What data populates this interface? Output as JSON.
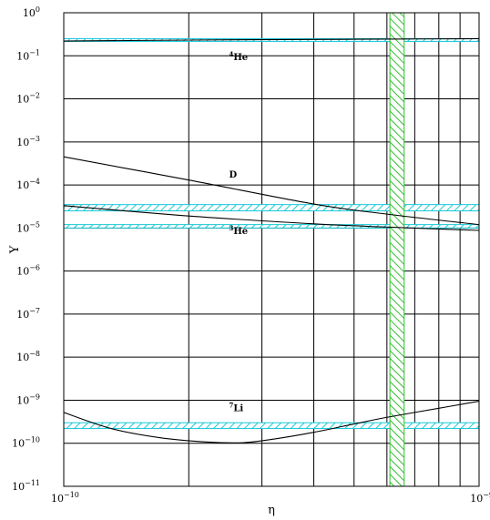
{
  "chart_data": {
    "type": "line",
    "title": "",
    "xlabel": "η",
    "ylabel": "Y",
    "x_scale": "log",
    "y_scale": "log",
    "xlim": [
      1e-10,
      1e-09
    ],
    "ylim": [
      1e-11,
      1
    ],
    "grid": true,
    "x_ticks": [
      {
        "base": "10",
        "exp": "−10",
        "value": 1e-10
      },
      {
        "base": "10",
        "exp": "−9",
        "value": 1e-09
      }
    ],
    "y_ticks": [
      {
        "base": "10",
        "exp": "0",
        "value": 1
      },
      {
        "base": "10",
        "exp": "−1",
        "value": 0.1
      },
      {
        "base": "10",
        "exp": "−2",
        "value": 0.01
      },
      {
        "base": "10",
        "exp": "−3",
        "value": 0.001
      },
      {
        "base": "10",
        "exp": "−4",
        "value": 0.0001
      },
      {
        "base": "10",
        "exp": "−5",
        "value": 1e-05
      },
      {
        "base": "10",
        "exp": "−6",
        "value": 1e-06
      },
      {
        "base": "10",
        "exp": "−7",
        "value": 1e-07
      },
      {
        "base": "10",
        "exp": "−8",
        "value": 1e-08
      },
      {
        "base": "10",
        "exp": "−9",
        "value": 1e-09
      },
      {
        "base": "10",
        "exp": "−10",
        "value": 1e-10
      },
      {
        "base": "10",
        "exp": "−11",
        "value": 1e-11
      }
    ],
    "series": [
      {
        "label_sup": "4",
        "label_main": "He",
        "label_at": [
          2.5e-10,
          0.08
        ],
        "x": [
          1e-10,
          2e-10,
          4e-10,
          6e-10,
          1e-09
        ],
        "y": [
          0.22,
          0.232,
          0.24,
          0.244,
          0.25
        ]
      },
      {
        "label_sup": "",
        "label_main": "D",
        "label_at": [
          2.5e-10,
          0.00015
        ],
        "x": [
          1e-10,
          2e-10,
          4e-10,
          6e-10,
          1e-09
        ],
        "y": [
          0.00045,
          0.00013,
          3.6e-05,
          2.1e-05,
          1.2e-05
        ]
      },
      {
        "label_sup": "3",
        "label_main": "He",
        "label_at": [
          2.5e-10,
          7.2e-06
        ],
        "x": [
          1e-10,
          2e-10,
          4e-10,
          6e-10,
          1e-09
        ],
        "y": [
          3.3e-05,
          1.9e-05,
          1.25e-05,
          1.05e-05,
          8.8e-06
        ]
      },
      {
        "label_sup": "7",
        "label_main": "Li",
        "label_at": [
          2.5e-10,
          5.5e-10
        ],
        "x": [
          1e-10,
          1.3e-10,
          1.7e-10,
          2.2e-10,
          2.7e-10,
          3.2e-10,
          4e-10,
          5e-10,
          6e-10,
          8e-10,
          1e-09
        ],
        "y": [
          5.2e-10,
          2.2e-10,
          1.35e-10,
          1.07e-10,
          1.03e-10,
          1.25e-10,
          1.8e-10,
          2.8e-10,
          4e-10,
          6.5e-10,
          9.5e-10
        ]
      }
    ],
    "observed_bands_y": [
      {
        "name": "4He",
        "range": [
          0.22,
          0.25
        ]
      },
      {
        "name": "D",
        "range": [
          2.5e-05,
          3.5e-05
        ]
      },
      {
        "name": "3He",
        "range": [
          1e-05,
          1.2e-05
        ]
      },
      {
        "name": "7Li",
        "range": [
          2.2e-10,
          3e-10
        ]
      }
    ],
    "observed_band_x": {
      "range": [
        6.1e-10,
        6.6e-10
      ]
    },
    "colors": {
      "band_y": "#19c8d8",
      "band_x": "#30c030",
      "curve": "#000000"
    }
  }
}
